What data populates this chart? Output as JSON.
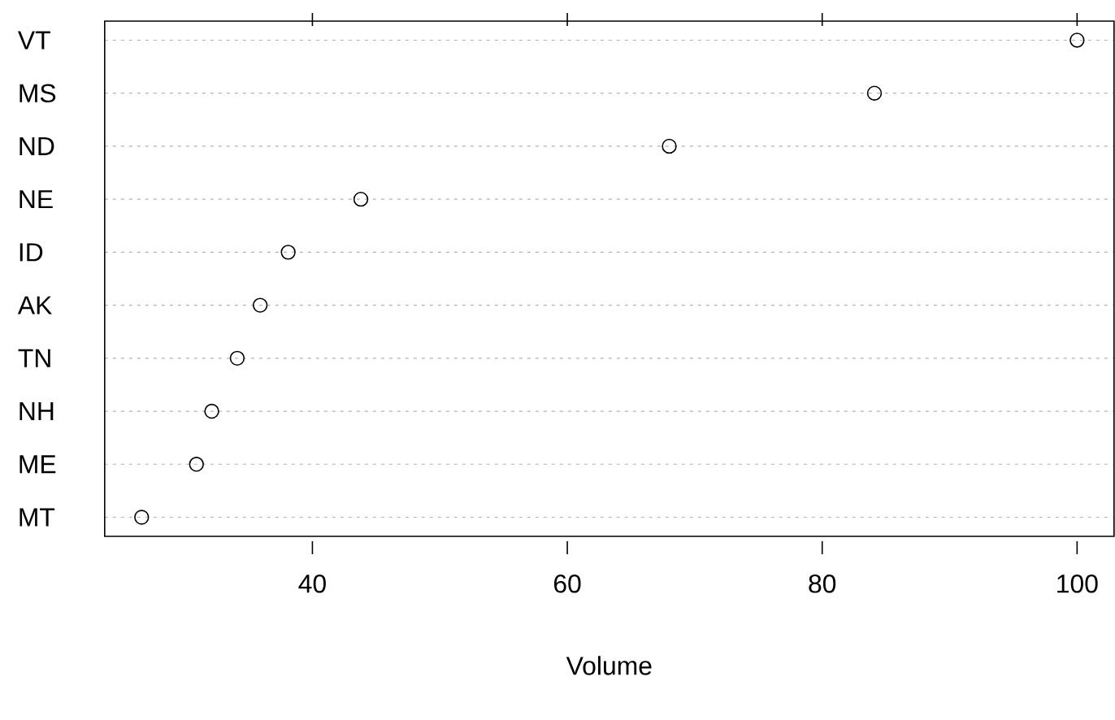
{
  "chart_data": {
    "type": "scatter",
    "orientation": "horizontal",
    "xlabel": "Volume",
    "categories": [
      "VT",
      "MS",
      "ND",
      "NE",
      "ID",
      "AK",
      "TN",
      "NH",
      "ME",
      "MT"
    ],
    "values": [
      100,
      84.1,
      68.0,
      43.8,
      38.1,
      35.9,
      34.1,
      32.1,
      30.9,
      26.6
    ],
    "color": "#000000",
    "marker": "circle",
    "grid": "y",
    "xlim": [
      23.7,
      102.9
    ],
    "xticks": [
      40,
      60,
      80,
      100
    ]
  }
}
